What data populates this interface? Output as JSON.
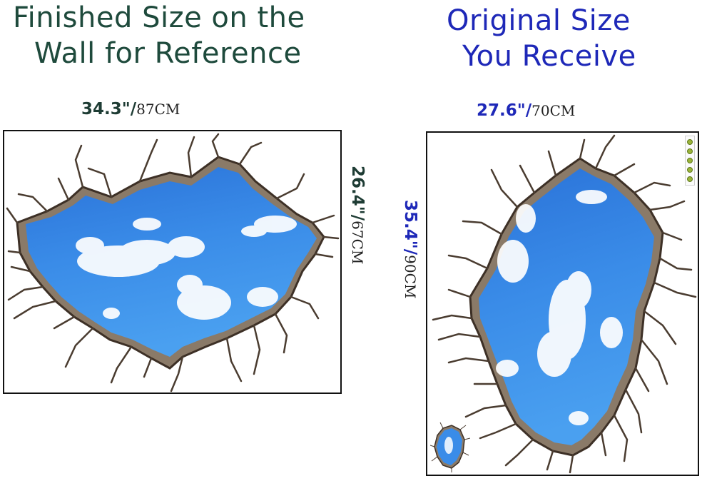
{
  "left": {
    "heading": {
      "line1": "Finished Size on the",
      "line2": "Wall for Reference"
    },
    "width": {
      "inch": "34.3\"/",
      "cm": "87CM"
    },
    "height": {
      "inch": "26.4\"/",
      "cm": "67CM"
    }
  },
  "right": {
    "heading": {
      "line1": "Original Size",
      "line2": "You Receive"
    },
    "width": {
      "inch": "27.6\"/",
      "cm": "70CM"
    },
    "height": {
      "inch": "35.4\"/",
      "cm": "90CM"
    }
  },
  "colors": {
    "left_heading": "#1e4a3c",
    "right_heading": "#1e28b8",
    "sky": "#2f7fe0",
    "cracked_wall": "#8a7a68"
  }
}
